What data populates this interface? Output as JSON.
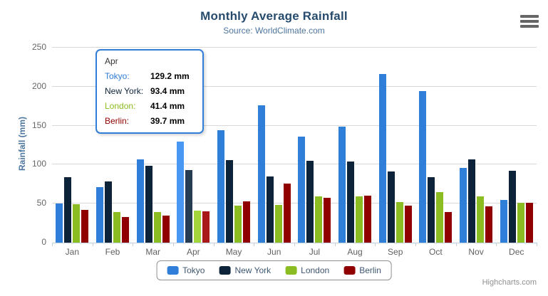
{
  "header": {
    "title": "Monthly Average Rainfall",
    "subtitle": "Source: WorldClimate.com"
  },
  "chart_data": {
    "type": "bar",
    "title": "Monthly Average Rainfall",
    "subtitle": "Source: WorldClimate.com",
    "ylabel": "Rainfall (mm)",
    "xlabel": "",
    "ylim": [
      0,
      250
    ],
    "yticks": [
      0,
      50,
      100,
      150,
      200,
      250
    ],
    "grid": true,
    "legend_position": "bottom",
    "categories": [
      "Jan",
      "Feb",
      "Mar",
      "Apr",
      "May",
      "Jun",
      "Jul",
      "Aug",
      "Sep",
      "Oct",
      "Nov",
      "Dec"
    ],
    "series": [
      {
        "name": "Tokyo",
        "color": "#2f7ed8",
        "hover_color": "#4897f1",
        "values": [
          49.9,
          71.5,
          106.4,
          129.2,
          144.0,
          176.0,
          135.6,
          148.5,
          216.4,
          194.1,
          95.6,
          54.4
        ]
      },
      {
        "name": "New York",
        "color": "#0d233a",
        "hover_color": "#263c53",
        "values": [
          83.6,
          78.8,
          98.5,
          93.4,
          106.0,
          84.5,
          105.0,
          104.3,
          91.2,
          83.5,
          106.6,
          92.3
        ]
      },
      {
        "name": "London",
        "color": "#8bbc21",
        "hover_color": "#a4d53a",
        "values": [
          48.9,
          38.8,
          39.3,
          41.4,
          47.0,
          48.3,
          59.0,
          59.6,
          52.4,
          65.2,
          59.3,
          51.2
        ]
      },
      {
        "name": "Berlin",
        "color": "#910000",
        "hover_color": "#aa1919",
        "values": [
          42.4,
          33.2,
          34.5,
          39.7,
          52.6,
          75.5,
          57.4,
          60.4,
          47.6,
          39.1,
          46.8,
          51.1
        ]
      }
    ],
    "hovered_category": "Apr"
  },
  "tooltip": {
    "header": "Apr",
    "border_color": "#2f7ed8",
    "rows": [
      {
        "series": "Tokyo",
        "label": "Tokyo:",
        "value": "129.2 mm"
      },
      {
        "series": "New York",
        "label": "New York:",
        "value": "93.4 mm"
      },
      {
        "series": "London",
        "label": "London:",
        "value": "41.4 mm"
      },
      {
        "series": "Berlin",
        "label": "Berlin:",
        "value": "39.7 mm"
      }
    ]
  },
  "legend": {
    "items": [
      "Tokyo",
      "New York",
      "London",
      "Berlin"
    ]
  },
  "credits": "Highcharts.com"
}
